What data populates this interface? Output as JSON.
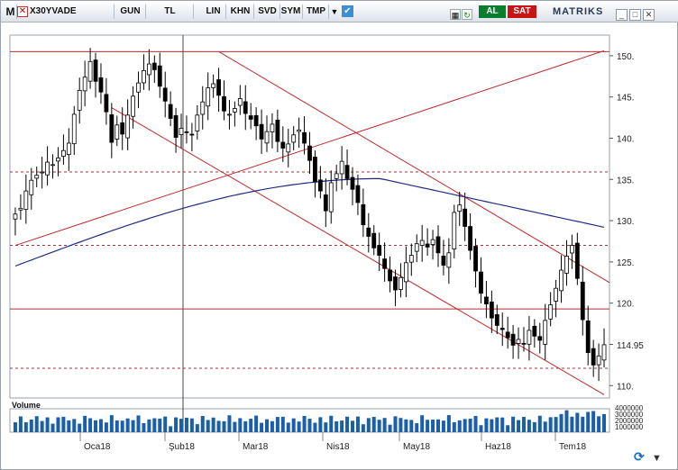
{
  "toolbar": {
    "menu_label": "M",
    "symbol": "X30YVADE",
    "period": "GUN",
    "currency": "TL",
    "lin": "LIN",
    "khn": "KHN",
    "svd": "SVD",
    "sym": "SYM",
    "tmp": "TMP",
    "buy_label": "AL",
    "sell_label": "SAT",
    "brand": "MATRIKS",
    "colors": {
      "buy": "#0b7d2c",
      "sell": "#c81414"
    }
  },
  "chart_data": {
    "type": "candlestick",
    "price_axis": {
      "ticks": [
        110,
        115,
        120,
        125,
        130,
        135,
        140,
        145,
        150
      ],
      "tick_labels": [
        "110.",
        "",
        "120.",
        "125.",
        "130.",
        "135.",
        "140.",
        "145.",
        "150."
      ],
      "range": [
        108.5,
        152.5
      ]
    },
    "last_price": "114.95",
    "x_tick_labels": [
      "Oca18",
      "Şub18",
      "Mar18",
      "Nis18",
      "May18",
      "Haz18",
      "Tem18"
    ],
    "volume": {
      "label": "Volume",
      "axis_labels": [
        "4000000",
        "3000000",
        "2000000",
        "1000000"
      ]
    },
    "horizontal_levels": [
      {
        "value": 150.5,
        "style": "solid"
      },
      {
        "value": 135.9,
        "style": "dashed"
      },
      {
        "value": 127.0,
        "style": "dashed"
      },
      {
        "value": 119.3,
        "style": "solid"
      },
      {
        "value": 112.1,
        "style": "dashed"
      }
    ],
    "close": [
      130.8,
      131.5,
      133.6,
      134.9,
      135.5,
      135.9,
      137.1,
      136.8,
      137.6,
      138.5,
      139.4,
      142.9,
      145.8,
      147.4,
      149.3,
      146.9,
      145.6,
      143.2,
      139.5,
      141.6,
      140.5,
      142.8,
      145.1,
      146.7,
      148.2,
      149.0,
      148.3,
      146.3,
      144.5,
      142.4,
      140.1,
      141.2,
      140.7,
      140.4,
      142.8,
      144.4,
      146.1,
      146.6,
      145.2,
      143.3,
      142.9,
      143.6,
      144.8,
      143.0,
      142.3,
      141.5,
      139.9,
      140.8,
      141.7,
      139.6,
      138.8,
      139.3,
      140.4,
      141.0,
      139.4,
      137.3,
      134.7,
      133.6,
      131.2,
      134.6,
      135.7,
      137.2,
      135.1,
      133.8,
      132.2,
      129.5,
      128.1,
      126.7,
      125.8,
      124.2,
      122.7,
      121.6,
      123.1,
      124.9,
      125.8,
      127.2,
      127.6,
      126.8,
      127.7,
      126.1,
      124.6,
      126.1,
      131.0,
      131.9,
      129.3,
      126.4,
      123.9,
      121.2,
      119.9,
      118.2,
      117.3,
      116.8,
      115.8,
      114.9,
      115.6,
      115.1,
      116.7,
      116.0,
      115.5,
      117.9,
      119.8,
      121.8,
      124.0,
      125.7,
      127.0,
      123.0,
      118.0,
      114.0,
      112.5,
      113.6,
      114.95
    ],
    "moving_average_overlay": true,
    "trendlines": "channel-and-fan"
  }
}
